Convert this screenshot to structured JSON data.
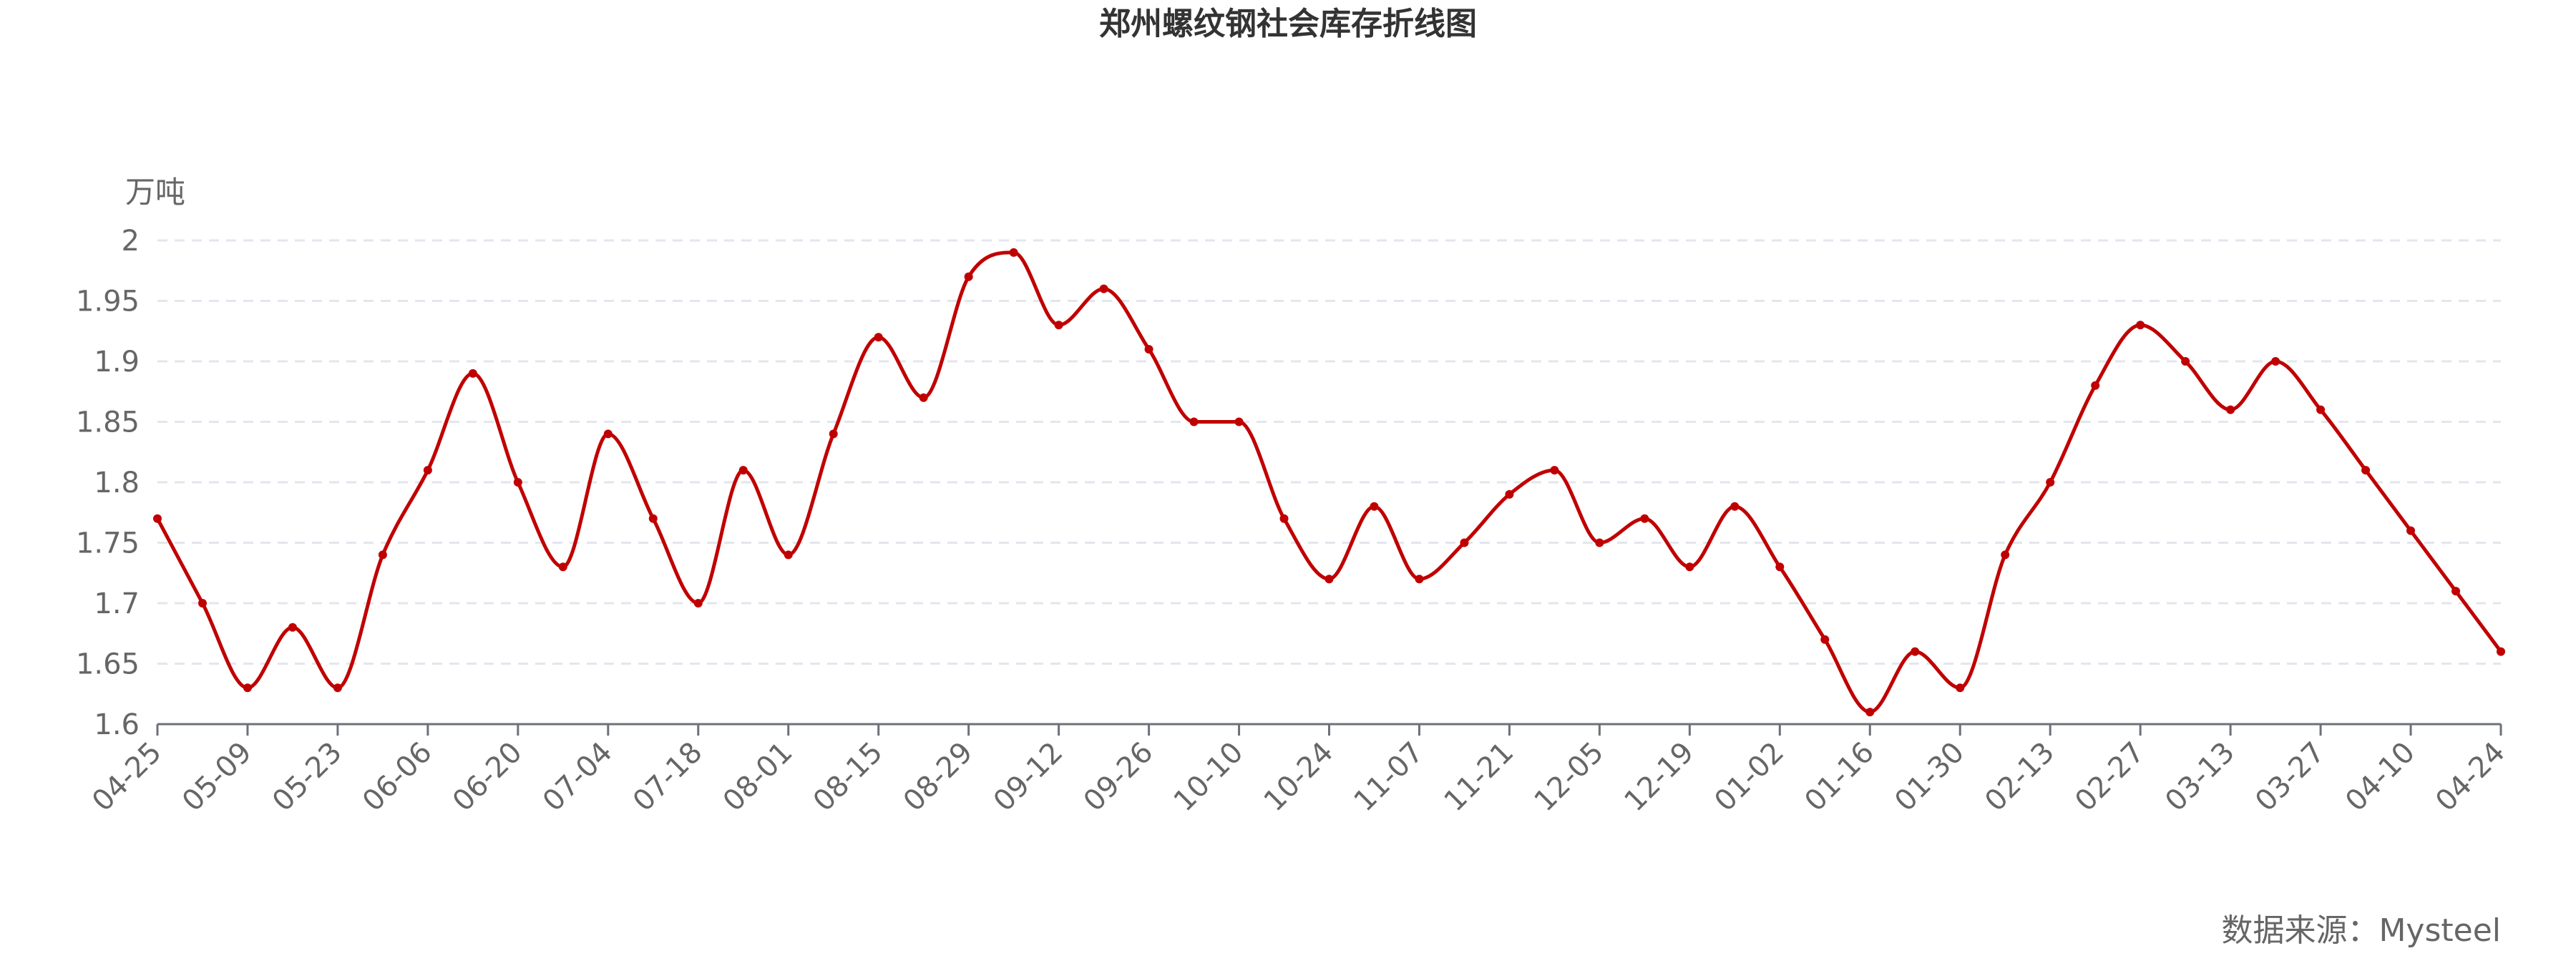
{
  "chart_data": {
    "type": "line",
    "title": "郑州螺纹钢社会库存折线图",
    "unit_label": "万吨",
    "source_text": "数据来源：Mysteel",
    "ylim": [
      1.6,
      2.0
    ],
    "y_ticks": [
      "1.6",
      "1.65",
      "1.7",
      "1.75",
      "1.8",
      "1.85",
      "1.9",
      "1.95",
      "2"
    ],
    "x_tick_labels": [
      "04-25",
      "05-09",
      "05-23",
      "06-06",
      "06-20",
      "07-04",
      "07-18",
      "08-01",
      "08-15",
      "08-29",
      "09-12",
      "09-26",
      "10-10",
      "10-24",
      "11-07",
      "11-21",
      "12-05",
      "12-19",
      "01-02",
      "01-16",
      "01-30",
      "02-13",
      "02-27",
      "03-13",
      "03-27",
      "04-10",
      "04-24"
    ],
    "grid": "horizontal dashed",
    "series": [
      {
        "color": "#c00000",
        "values": [
          1.77,
          1.7,
          1.63,
          1.68,
          1.63,
          1.74,
          1.81,
          1.89,
          1.8,
          1.73,
          1.84,
          1.77,
          1.7,
          1.81,
          1.74,
          1.84,
          1.92,
          1.87,
          1.97,
          1.99,
          1.93,
          1.96,
          1.91,
          1.85,
          1.85,
          1.77,
          1.72,
          1.78,
          1.72,
          1.75,
          1.79,
          1.81,
          1.75,
          1.77,
          1.73,
          1.78,
          1.73,
          1.67,
          1.61,
          1.66,
          1.63,
          1.74,
          1.8,
          1.88,
          1.93,
          1.9,
          1.86,
          1.9,
          1.86,
          1.81,
          1.76,
          1.71,
          1.66
        ]
      }
    ]
  }
}
